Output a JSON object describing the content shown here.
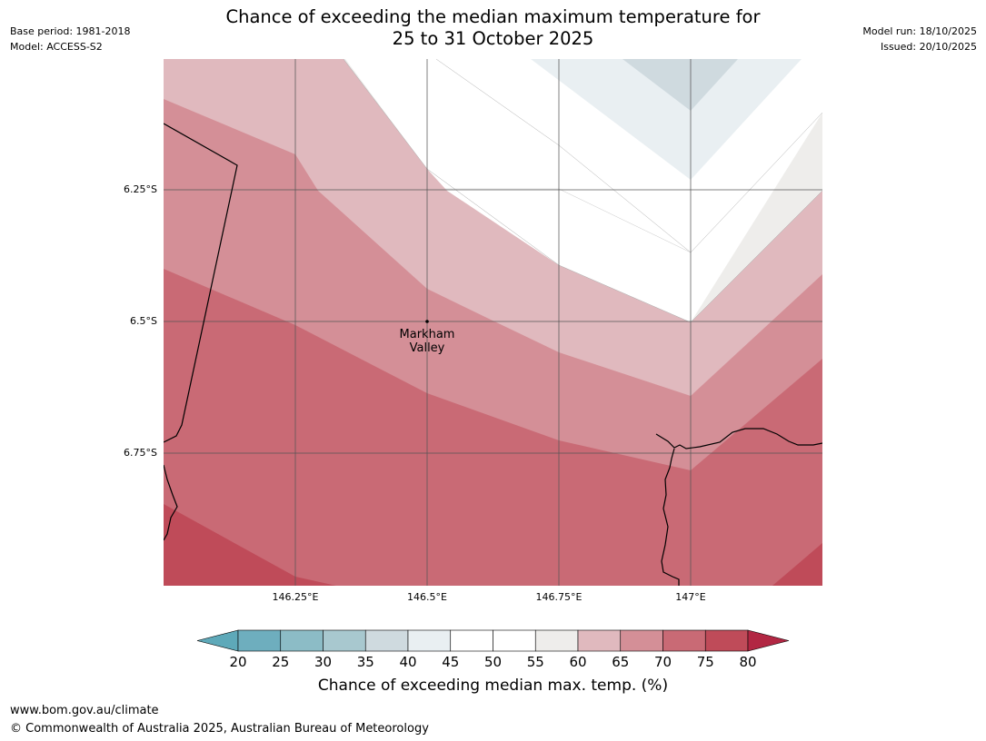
{
  "header": {
    "title_line1": "Chance of exceeding the median maximum temperature for",
    "title_line2": "25 to 31 October 2025",
    "base_period": "Base period: 1981-2018",
    "model": "Model: ACCESS-S2",
    "model_run": "Model run: 18/10/2025",
    "issued": "Issued: 20/10/2025"
  },
  "map": {
    "lat_labels": [
      "6.25°S",
      "6.5°S",
      "6.75°S"
    ],
    "lon_labels": [
      "146.25°E",
      "146.5°E",
      "146.75°E",
      "147°E"
    ],
    "place": {
      "name_line1": "Markham",
      "name_line2": "Valley"
    },
    "band_colors": {
      "30_35": "#cfdadf",
      "35_40": "#e9eff2",
      "45_55": "#ffffff",
      "55_60": "#eeedeb",
      "60_65": "#e0b9be",
      "65_70": "#d48f97",
      "70_75": "#c96a75",
      "75_80": "#bf4b59"
    }
  },
  "colorbar": {
    "ticks": [
      "20",
      "25",
      "30",
      "35",
      "40",
      "45",
      "50",
      "55",
      "60",
      "65",
      "70",
      "75",
      "80"
    ],
    "colors": [
      "#5ea9b9",
      "#6eaebe",
      "#8cbcc6",
      "#a8c8cf",
      "#cfdadf",
      "#e9eff2",
      "#ffffff",
      "#ffffff",
      "#eeedeb",
      "#e0b9be",
      "#d48f97",
      "#c96a75",
      "#bf4b59",
      "#b22743"
    ],
    "label": "Chance of exceeding median max. temp. (%)"
  },
  "footer": {
    "url": "www.bom.gov.au/climate",
    "copyright": "© Commonwealth of Australia 2025, Australian Bureau of Meteorology"
  }
}
